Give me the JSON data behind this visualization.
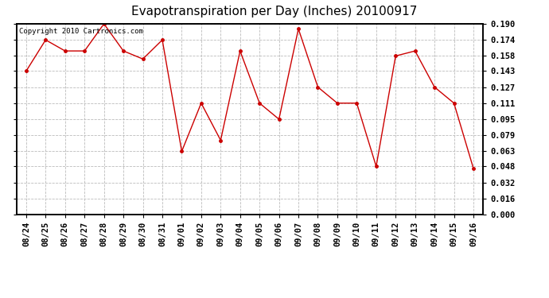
{
  "title": "Evapotranspiration per Day (Inches) 20100917",
  "copyright": "Copyright 2010 Cartronics.com",
  "dates": [
    "08/24",
    "08/25",
    "08/26",
    "08/27",
    "08/28",
    "08/29",
    "08/30",
    "08/31",
    "09/01",
    "09/02",
    "09/03",
    "09/04",
    "09/05",
    "09/06",
    "09/07",
    "09/08",
    "09/09",
    "09/10",
    "09/11",
    "09/12",
    "09/13",
    "09/14",
    "09/15",
    "09/16"
  ],
  "values": [
    0.143,
    0.174,
    0.163,
    0.163,
    0.19,
    0.163,
    0.155,
    0.174,
    0.063,
    0.111,
    0.074,
    0.163,
    0.111,
    0.095,
    0.185,
    0.127,
    0.111,
    0.111,
    0.048,
    0.158,
    0.163,
    0.127,
    0.111,
    0.046
  ],
  "ylim": [
    0.0,
    0.19
  ],
  "yticks": [
    0.0,
    0.016,
    0.032,
    0.048,
    0.063,
    0.079,
    0.095,
    0.111,
    0.127,
    0.143,
    0.158,
    0.174,
    0.19
  ],
  "line_color": "#cc0000",
  "marker": "o",
  "marker_size": 2.5,
  "background_color": "#ffffff",
  "grid_color": "#bbbbbb",
  "title_fontsize": 11,
  "tick_fontsize": 7.5,
  "copyright_fontsize": 6.5
}
